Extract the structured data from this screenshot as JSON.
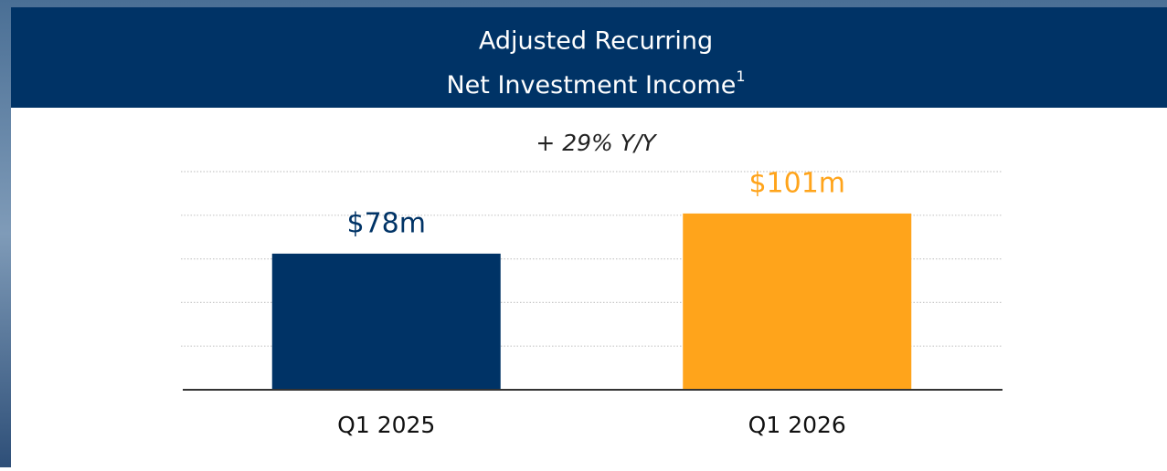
{
  "chart_data": {
    "type": "bar",
    "title_lines": [
      "Adjusted Recurring",
      "Net Investment Income"
    ],
    "title_footnote": "1",
    "annotation": "+ 29% Y/Y",
    "categories": [
      "Q1 2025",
      "Q1 2026"
    ],
    "values": [
      78,
      101
    ],
    "value_labels": [
      "$78m",
      "$101m"
    ],
    "colors": [
      "#003366",
      "#ffa41b"
    ],
    "ylim": [
      0,
      125
    ],
    "yticks": [
      25,
      50,
      75,
      100,
      125
    ],
    "grid": true
  }
}
